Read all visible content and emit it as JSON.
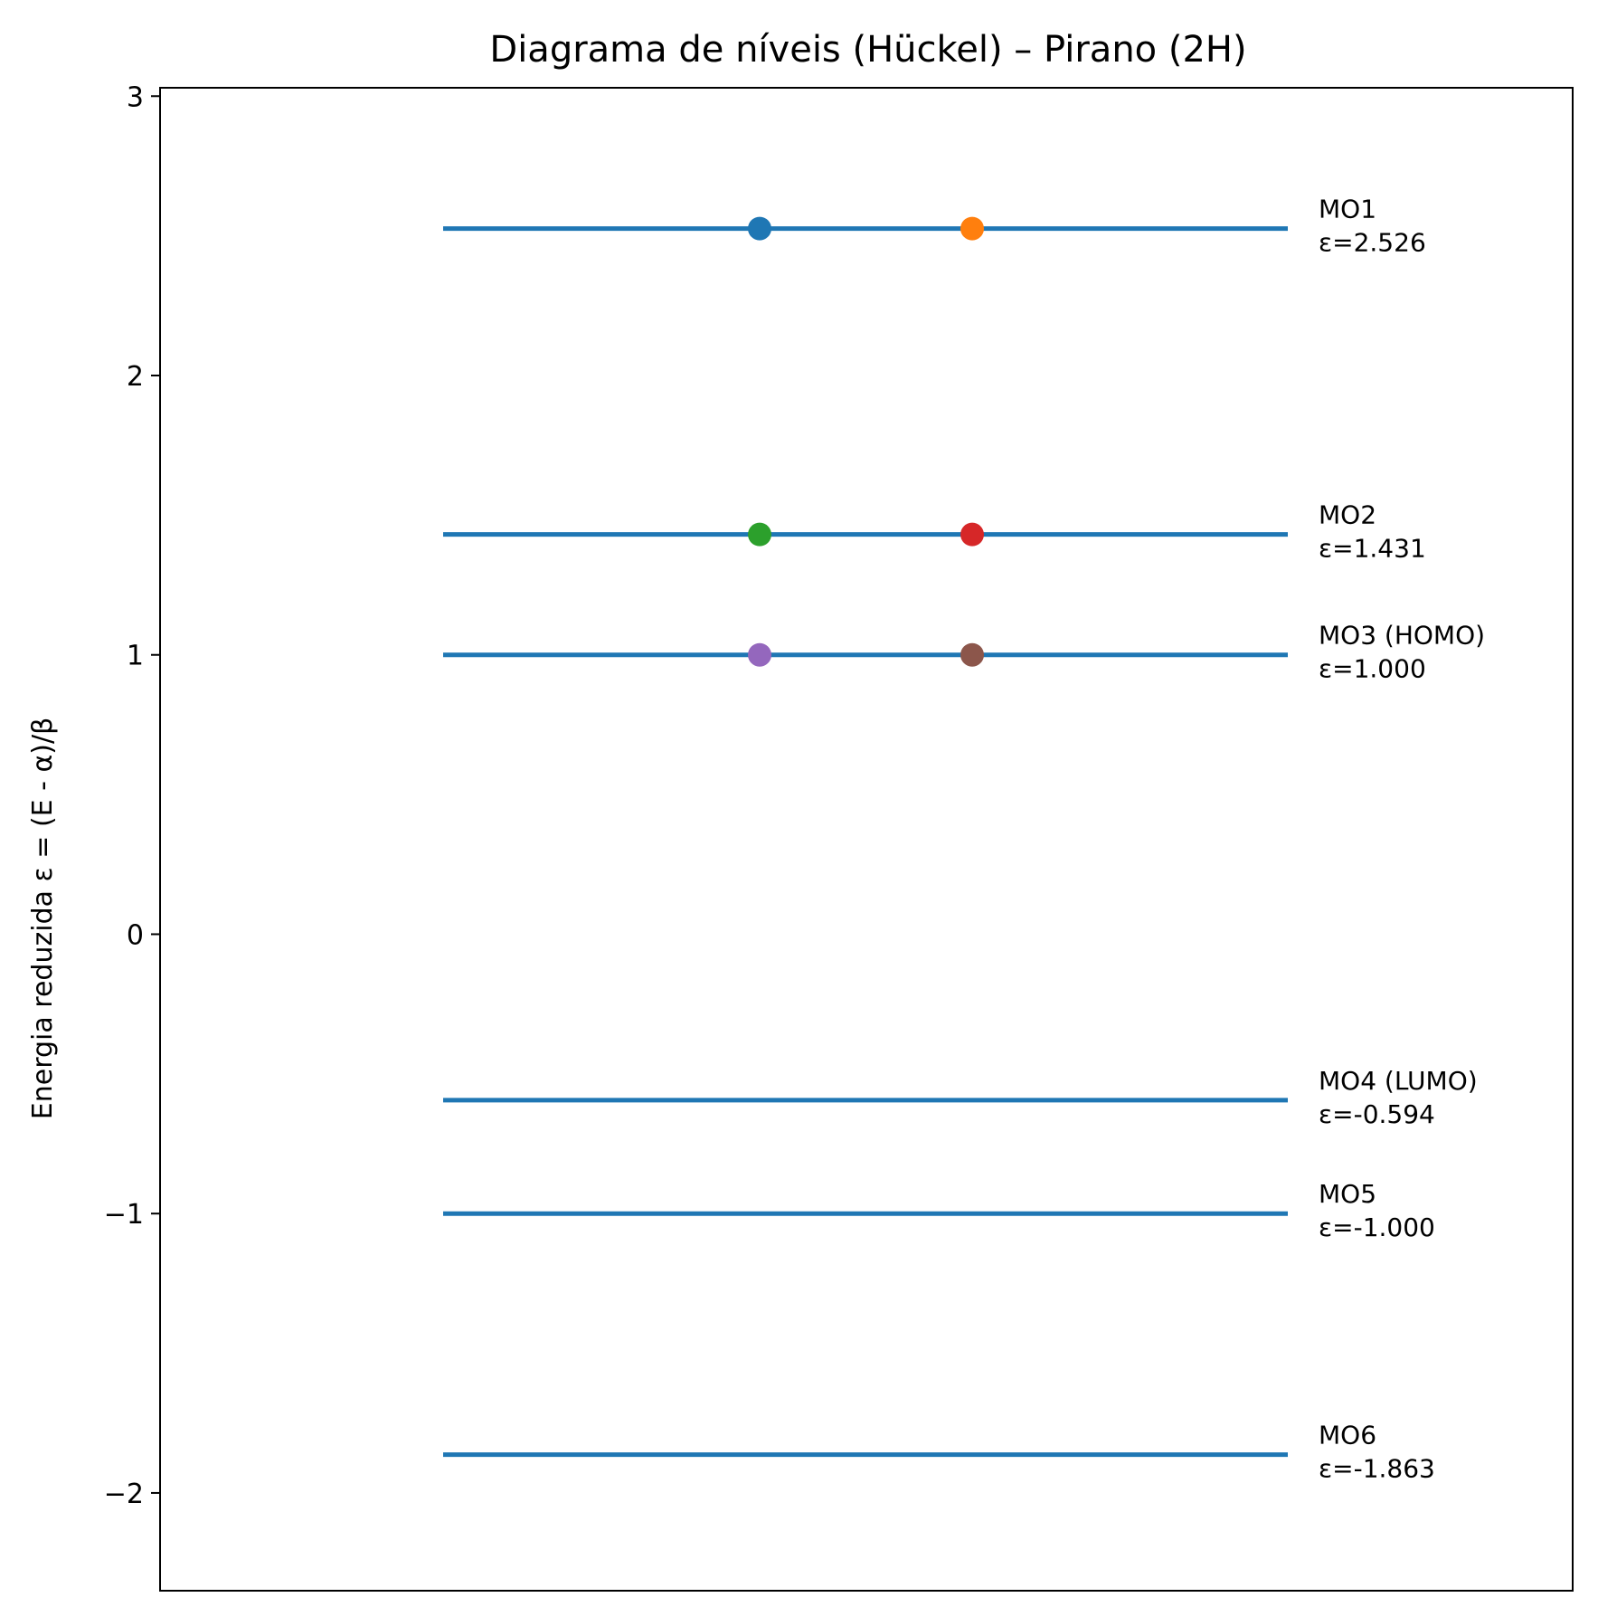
{
  "chart_data": {
    "type": "line",
    "title": "Diagrama de níveis (Hückel) – Pirano (2H)",
    "xlabel": "",
    "ylabel": "Energia reduzida ε = (E - α)/β",
    "ylim": [
      -2.35,
      3.03
    ],
    "yticks": [
      {
        "value": 3,
        "label": "3"
      },
      {
        "value": 2,
        "label": "2"
      },
      {
        "value": 1,
        "label": "1"
      },
      {
        "value": 0,
        "label": "0"
      },
      {
        "value": -1,
        "label": "−1"
      },
      {
        "value": -2,
        "label": "−2"
      }
    ],
    "x_ticks_visible": false,
    "grid": false,
    "line_color": "#1f77b4",
    "levels": [
      {
        "name": "MO1",
        "energy": 2.526,
        "label_line1": "MO1",
        "label_line2": "ε=2.526"
      },
      {
        "name": "MO2",
        "energy": 1.431,
        "label_line1": "MO2",
        "label_line2": "ε=1.431"
      },
      {
        "name": "MO3",
        "energy": 1.0,
        "label_line1": "MO3 (HOMO)",
        "label_line2": "ε=1.000"
      },
      {
        "name": "MO4",
        "energy": -0.594,
        "label_line1": "MO4 (LUMO)",
        "label_line2": "ε=-0.594"
      },
      {
        "name": "MO5",
        "energy": -1.0,
        "label_line1": "MO5",
        "label_line2": "ε=-1.000"
      },
      {
        "name": "MO6",
        "energy": -1.863,
        "label_line1": "MO6",
        "label_line2": "ε=-1.863"
      }
    ],
    "electrons": [
      {
        "level": "MO1",
        "energy": 2.526,
        "side": "left",
        "color": "#1f77b4"
      },
      {
        "level": "MO1",
        "energy": 2.526,
        "side": "right",
        "color": "#ff7f0e"
      },
      {
        "level": "MO2",
        "energy": 1.431,
        "side": "left",
        "color": "#2ca02c"
      },
      {
        "level": "MO2",
        "energy": 1.431,
        "side": "right",
        "color": "#d62728"
      },
      {
        "level": "MO3",
        "energy": 1.0,
        "side": "left",
        "color": "#9467bd"
      },
      {
        "level": "MO3",
        "energy": 1.0,
        "side": "right",
        "color": "#8c564b"
      }
    ]
  }
}
